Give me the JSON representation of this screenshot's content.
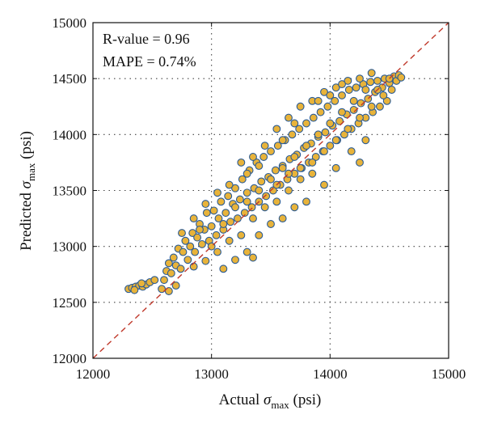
{
  "chart_data": {
    "type": "scatter",
    "title": "",
    "xlabel": {
      "prefix": "Actual ",
      "symbol": "σ",
      "subscript": "max",
      "suffix": " (psi)"
    },
    "ylabel": {
      "prefix": "Predicted ",
      "symbol": "σ",
      "subscript": "max",
      "suffix": " (psi)"
    },
    "xlim": [
      12000,
      15000
    ],
    "ylim": [
      12000,
      15000
    ],
    "xticks": [
      12000,
      13000,
      14000,
      15000
    ],
    "yticks": [
      12000,
      12500,
      13000,
      13500,
      14000,
      14500,
      15000
    ],
    "xtick_labels": [
      "12000",
      "13000",
      "14000",
      "15000"
    ],
    "ytick_labels": [
      "12000",
      "12500",
      "13000",
      "13500",
      "14000",
      "14500",
      "15000"
    ],
    "grid": true,
    "annotations": [
      "R-value = 0.96",
      "MAPE = 0.74%"
    ],
    "reference_line": {
      "style": "dashed",
      "from": [
        12000,
        12000
      ],
      "to": [
        15000,
        15000
      ]
    },
    "series": [
      {
        "marker_fill": "#e8b33a",
        "marker_edge": "#2a5b95",
        "points": [
          [
            12300,
            12620
          ],
          [
            12330,
            12630
          ],
          [
            12360,
            12640
          ],
          [
            12390,
            12650
          ],
          [
            12420,
            12640
          ],
          [
            12450,
            12660
          ],
          [
            12480,
            12680
          ],
          [
            12350,
            12610
          ],
          [
            12410,
            12670
          ],
          [
            12520,
            12700
          ],
          [
            12580,
            12620
          ],
          [
            12600,
            12700
          ],
          [
            12620,
            12780
          ],
          [
            12640,
            12850
          ],
          [
            12660,
            12760
          ],
          [
            12680,
            12900
          ],
          [
            12700,
            12830
          ],
          [
            12720,
            12980
          ],
          [
            12740,
            12800
          ],
          [
            12760,
            12950
          ],
          [
            12780,
            13050
          ],
          [
            12800,
            12880
          ],
          [
            12820,
            13000
          ],
          [
            12840,
            13120
          ],
          [
            12860,
            12950
          ],
          [
            12880,
            13080
          ],
          [
            12900,
            13200
          ],
          [
            12920,
            13020
          ],
          [
            12940,
            13150
          ],
          [
            12960,
            13300
          ],
          [
            12980,
            13050
          ],
          [
            13000,
            13180
          ],
          [
            13020,
            13320
          ],
          [
            13040,
            13100
          ],
          [
            13060,
            13250
          ],
          [
            13080,
            13400
          ],
          [
            13100,
            13150
          ],
          [
            13120,
            13300
          ],
          [
            13140,
            13450
          ],
          [
            13160,
            13220
          ],
          [
            13180,
            13380
          ],
          [
            13200,
            13520
          ],
          [
            13220,
            13250
          ],
          [
            13240,
            13420
          ],
          [
            13260,
            13600
          ],
          [
            13280,
            13300
          ],
          [
            13300,
            13480
          ],
          [
            13320,
            13680
          ],
          [
            13340,
            13350
          ],
          [
            13360,
            13520
          ],
          [
            13380,
            13750
          ],
          [
            13400,
            13400
          ],
          [
            13420,
            13580
          ],
          [
            13440,
            13800
          ],
          [
            13460,
            13450
          ],
          [
            13480,
            13620
          ],
          [
            13500,
            13850
          ],
          [
            13520,
            13500
          ],
          [
            13540,
            13680
          ],
          [
            13560,
            13900
          ],
          [
            13580,
            13550
          ],
          [
            13600,
            13720
          ],
          [
            13620,
            13950
          ],
          [
            13640,
            13600
          ],
          [
            13660,
            13780
          ],
          [
            13680,
            14000
          ],
          [
            13700,
            13650
          ],
          [
            13720,
            13820
          ],
          [
            13740,
            14050
          ],
          [
            13760,
            13700
          ],
          [
            13780,
            13880
          ],
          [
            13800,
            14100
          ],
          [
            13820,
            13750
          ],
          [
            13840,
            13920
          ],
          [
            13860,
            14150
          ],
          [
            13880,
            13800
          ],
          [
            13900,
            13980
          ],
          [
            13920,
            14200
          ],
          [
            13940,
            13850
          ],
          [
            13960,
            14020
          ],
          [
            13980,
            14250
          ],
          [
            14000,
            13900
          ],
          [
            14020,
            14080
          ],
          [
            14040,
            14300
          ],
          [
            14060,
            13950
          ],
          [
            14080,
            14120
          ],
          [
            14100,
            14350
          ],
          [
            14120,
            14000
          ],
          [
            14140,
            14180
          ],
          [
            14160,
            14400
          ],
          [
            14180,
            14050
          ],
          [
            14200,
            14220
          ],
          [
            14220,
            14420
          ],
          [
            14240,
            14100
          ],
          [
            14260,
            14280
          ],
          [
            14280,
            14450
          ],
          [
            14300,
            14150
          ],
          [
            14320,
            14320
          ],
          [
            14340,
            14470
          ],
          [
            14360,
            14200
          ],
          [
            14380,
            14380
          ],
          [
            14400,
            14480
          ],
          [
            14420,
            14250
          ],
          [
            14440,
            14420
          ],
          [
            14460,
            14500
          ],
          [
            14480,
            14300
          ],
          [
            14500,
            14460
          ],
          [
            14520,
            14400
          ],
          [
            14540,
            14520
          ],
          [
            14560,
            14480
          ],
          [
            14580,
            14530
          ],
          [
            14600,
            14510
          ],
          [
            14180,
            13850
          ],
          [
            14250,
            13750
          ],
          [
            14300,
            13950
          ],
          [
            14050,
            13700
          ],
          [
            13950,
            13550
          ],
          [
            13800,
            13400
          ],
          [
            13700,
            13350
          ],
          [
            13600,
            13250
          ],
          [
            13500,
            13200
          ],
          [
            13400,
            13100
          ],
          [
            13300,
            12950
          ],
          [
            13200,
            12880
          ],
          [
            13100,
            12800
          ],
          [
            13350,
            12900
          ],
          [
            13050,
            12950
          ],
          [
            12950,
            12870
          ],
          [
            12850,
            12820
          ],
          [
            12700,
            12650
          ],
          [
            12640,
            12600
          ],
          [
            13250,
            13750
          ],
          [
            13350,
            13800
          ],
          [
            13450,
            13900
          ],
          [
            13550,
            14050
          ],
          [
            13650,
            14150
          ],
          [
            13750,
            14250
          ],
          [
            13850,
            14300
          ],
          [
            13950,
            14380
          ],
          [
            14050,
            14420
          ],
          [
            14150,
            14480
          ],
          [
            13300,
            13650
          ],
          [
            13400,
            13720
          ],
          [
            13150,
            13550
          ],
          [
            13050,
            13480
          ],
          [
            12950,
            13380
          ],
          [
            12850,
            13250
          ],
          [
            12750,
            13120
          ],
          [
            13700,
            14100
          ],
          [
            13600,
            13950
          ],
          [
            13900,
            14300
          ],
          [
            14000,
            14350
          ],
          [
            14100,
            14450
          ],
          [
            14250,
            14500
          ],
          [
            14350,
            14550
          ],
          [
            12900,
            13150
          ],
          [
            13000,
            13000
          ],
          [
            13100,
            13200
          ],
          [
            13200,
            13350
          ],
          [
            13300,
            13400
          ],
          [
            13400,
            13500
          ],
          [
            13500,
            13600
          ],
          [
            13600,
            13700
          ],
          [
            13700,
            13800
          ],
          [
            13800,
            13900
          ],
          [
            13900,
            14000
          ],
          [
            14000,
            14100
          ],
          [
            14100,
            14200
          ],
          [
            14200,
            14300
          ],
          [
            14300,
            14400
          ],
          [
            14400,
            14400
          ],
          [
            14500,
            14500
          ],
          [
            13850,
            13650
          ],
          [
            13750,
            13600
          ],
          [
            13650,
            13500
          ],
          [
            13550,
            13400
          ],
          [
            13450,
            13350
          ],
          [
            13350,
            13250
          ],
          [
            13250,
            13100
          ],
          [
            13150,
            13050
          ],
          [
            14450,
            14350
          ],
          [
            14350,
            14250
          ],
          [
            14250,
            14150
          ],
          [
            14150,
            14050
          ],
          [
            14050,
            13950
          ],
          [
            13950,
            13850
          ],
          [
            13850,
            13750
          ],
          [
            13750,
            13700
          ],
          [
            13650,
            13650
          ],
          [
            13550,
            13550
          ]
        ]
      }
    ]
  }
}
